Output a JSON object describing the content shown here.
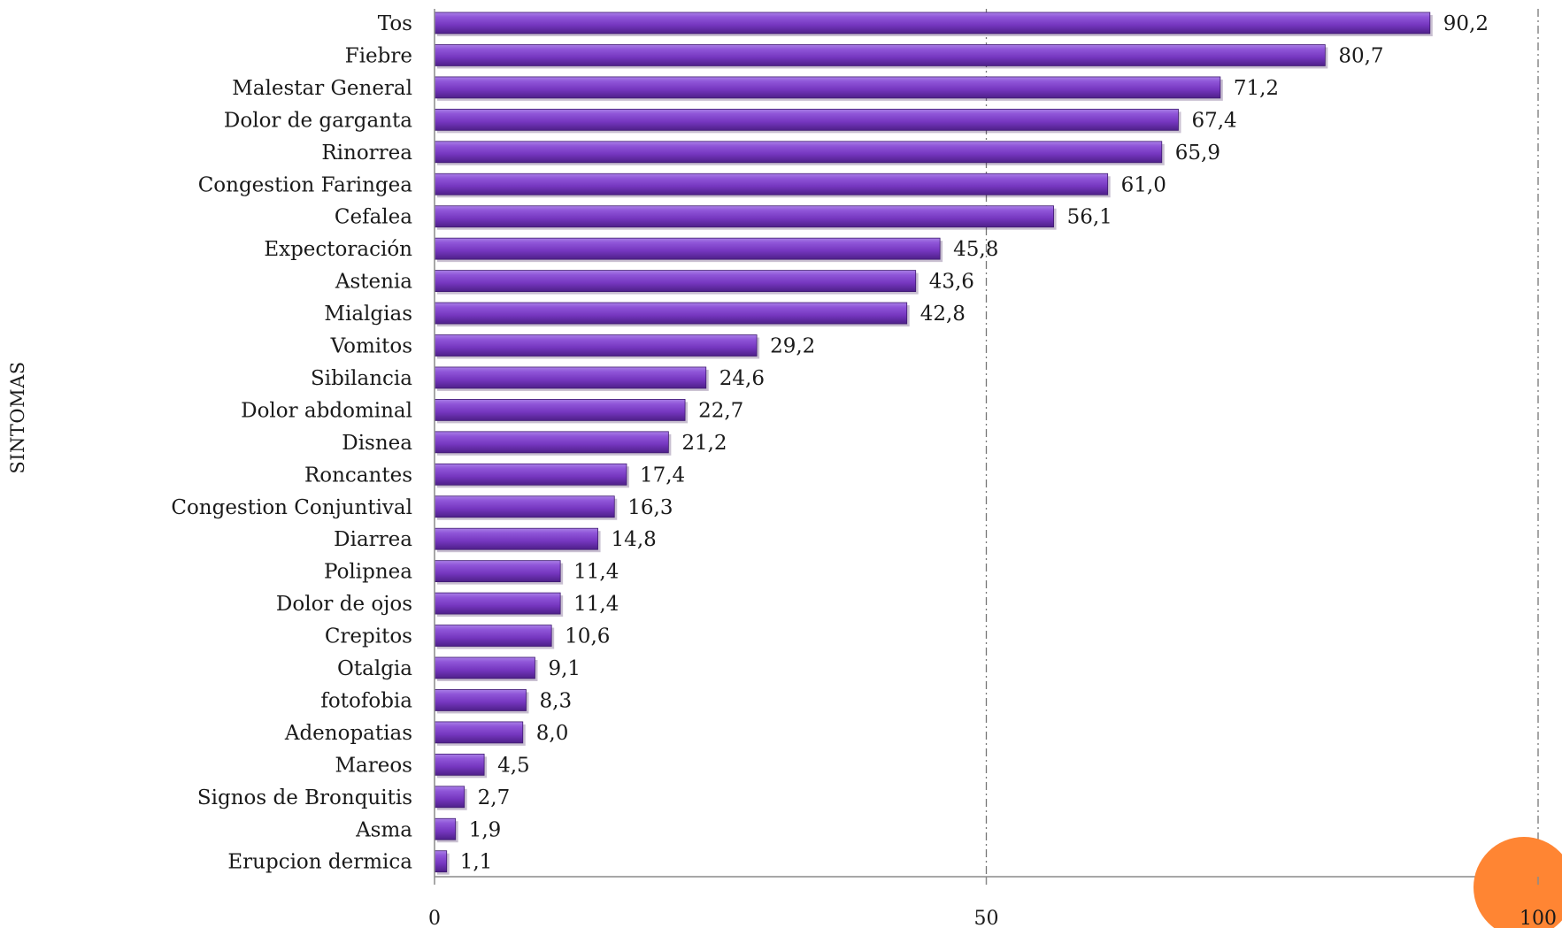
{
  "chart_data": {
    "type": "bar",
    "orientation": "horizontal",
    "ylabel": "SINTOMAS",
    "xlabel": "",
    "xlim": [
      0,
      100
    ],
    "x_ticks": [
      "0",
      "50",
      "100"
    ],
    "grid": "vertical dash-dot lines at 50 and 100",
    "bar_color": "#7b3fc4",
    "marker_color": "#ff8533",
    "categories": [
      "Tos",
      "Fiebre",
      "Malestar General",
      "Dolor de garganta",
      "Rinorrea",
      "Congestion Faringea",
      "Cefalea",
      "Expectoración",
      "Astenia",
      "Mialgias",
      "Vomitos",
      "Sibilancia",
      "Dolor abdominal",
      "Disnea",
      "Roncantes",
      "Congestion Conjuntival",
      "Diarrea",
      "Polipnea",
      "Dolor de ojos",
      "Crepitos",
      "Otalgia",
      "fotofobia",
      "Adenopatias",
      "Mareos",
      "Signos de Bronquitis",
      "Asma",
      "Erupcion dermica"
    ],
    "values": [
      90.2,
      80.7,
      71.2,
      67.4,
      65.9,
      61.0,
      56.1,
      45.8,
      43.6,
      42.8,
      29.2,
      24.6,
      22.7,
      21.2,
      17.4,
      16.3,
      14.8,
      11.4,
      11.4,
      10.6,
      9.1,
      8.3,
      8.0,
      4.5,
      2.7,
      1.9,
      1.1
    ],
    "value_labels": [
      "90,2",
      "80,7",
      "71,2",
      "67,4",
      "65,9",
      "61,0",
      "56,1",
      "45,8",
      "43,6",
      "42,8",
      "29,2",
      "24,6",
      "22,7",
      "21,2",
      "17,4",
      "16,3",
      "14,8",
      "11,4",
      "11,4",
      "10,6",
      "9,1",
      "8,3",
      "8,0",
      "4,5",
      "2,7",
      "1,9",
      "1,1"
    ]
  }
}
